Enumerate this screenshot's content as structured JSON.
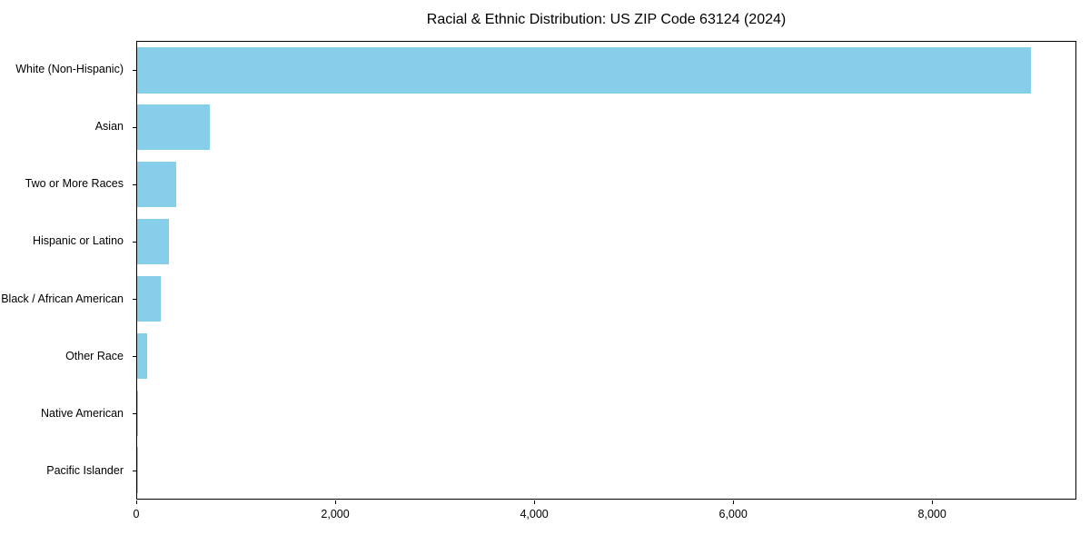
{
  "title": "Racial & Ethnic Distribution: US ZIP Code 63124 (2024)",
  "chart_data": {
    "type": "bar",
    "orientation": "horizontal",
    "title": "Racial & Ethnic Distribution: US ZIP Code 63124 (2024)",
    "categories": [
      "White (Non-Hispanic)",
      "Asian",
      "Two or More Races",
      "Hispanic or Latino",
      "Black / African American",
      "Other Race",
      "Native American",
      "Pacific Islander"
    ],
    "values": [
      9000,
      730,
      390,
      320,
      240,
      100,
      12,
      4
    ],
    "xlabel": "",
    "ylabel": "",
    "xlim": [
      0,
      9450
    ],
    "xticks": [
      0,
      2000,
      4000,
      6000,
      8000
    ],
    "xtick_labels": [
      "0",
      "2,000",
      "4,000",
      "6,000",
      "8,000"
    ],
    "bar_color": "#87CEEB",
    "grid": false,
    "legend": "none"
  }
}
